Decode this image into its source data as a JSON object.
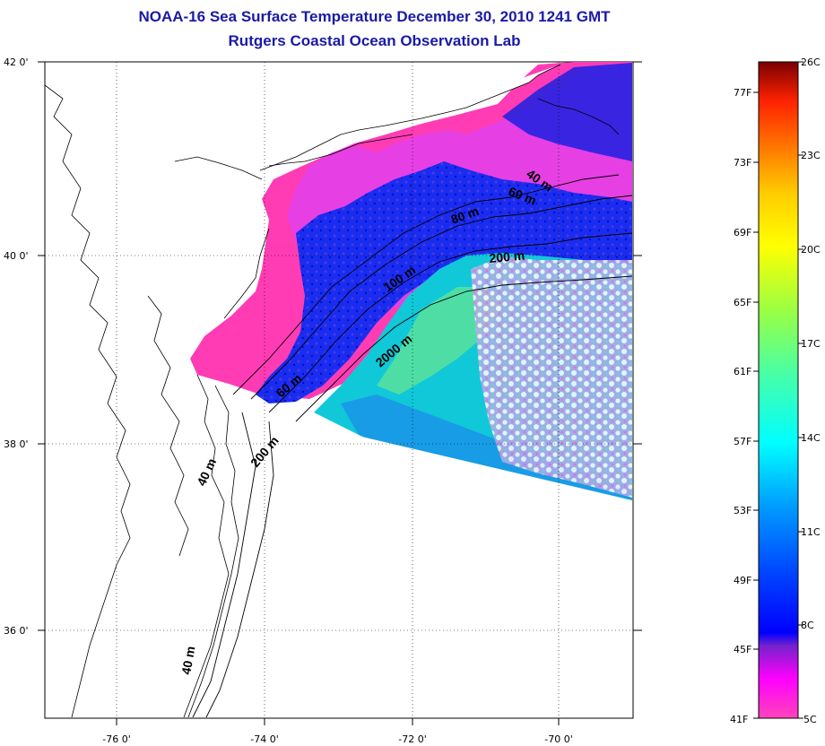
{
  "title": {
    "line1": "NOAA-16 Sea Surface Temperature December 30, 2010 1241 GMT",
    "line2": "Rutgers Coastal Ocean Observation Lab"
  },
  "map": {
    "lat_ticks": [
      "42 0'",
      "40 0'",
      "38 0'",
      "36 0'"
    ],
    "lon_ticks": [
      "-76 0'",
      "-74 0'",
      "-72 0'",
      "-70 0'"
    ],
    "depth_labels": [
      "40 m",
      "60 m",
      "80 m",
      "200 m",
      "100 m",
      "2000 m",
      "60 m",
      "200 m",
      "40 m",
      "40 m"
    ]
  },
  "colorbar": {
    "fahrenheit": [
      "77F",
      "73F",
      "69F",
      "65F",
      "61F",
      "57F",
      "53F",
      "49F",
      "45F",
      "41F"
    ],
    "celsius": [
      "26C",
      "23C",
      "20C",
      "17C",
      "14C",
      "11C",
      "8C",
      "5C"
    ]
  },
  "colors": {
    "title": "#1a1aa6",
    "cold_pink": "#ff3cb4",
    "magenta": "#ff00ff",
    "blue": "#0a28e6",
    "cyan": "#00e6e6",
    "green": "#55e0a0",
    "red": "#c80000"
  }
}
